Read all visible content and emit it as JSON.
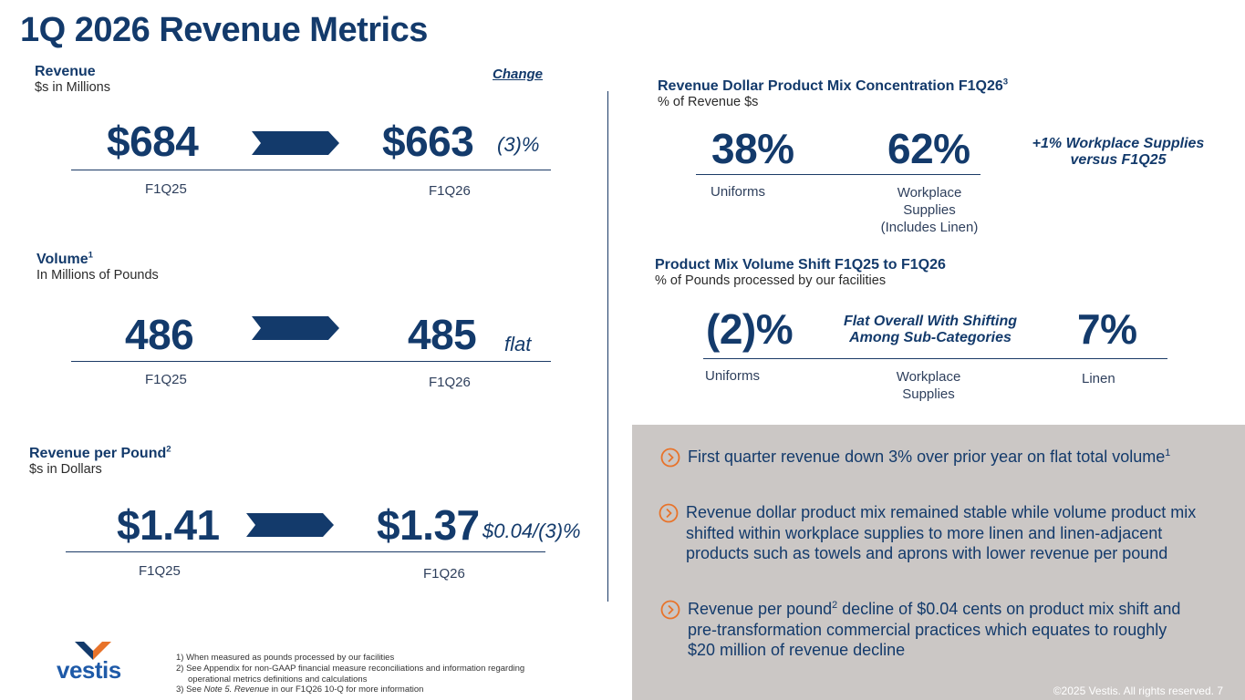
{
  "title": "1Q 2026 Revenue Metrics",
  "revenue": {
    "heading": "Revenue",
    "sub": "$s in Millions",
    "change_heading": "Change",
    "prior_value": "$684",
    "current_value": "$663",
    "change": "(3)%",
    "prior_label": "F1Q25",
    "current_label": "F1Q26"
  },
  "volume": {
    "heading": "Volume",
    "sup": "1",
    "sub": "In Millions of Pounds",
    "prior_value": "486",
    "current_value": "485",
    "change": "flat",
    "prior_label": "F1Q25",
    "current_label": "F1Q26"
  },
  "rpp": {
    "heading": "Revenue per Pound",
    "sup": "2",
    "sub": "$s in Dollars",
    "prior_value": "$1.41",
    "current_value": "$1.37",
    "change": "$0.04/(3)%",
    "prior_label": "F1Q25",
    "current_label": "F1Q26"
  },
  "mix": {
    "heading": "Revenue Dollar Product Mix Concentration F1Q26",
    "sup": "3",
    "sub": "% of Revenue $s",
    "uniforms_value": "38%",
    "workplace_value": "62%",
    "note_line1": "+1% Workplace Supplies",
    "note_line2": "versus F1Q25",
    "uniforms_label": "Uniforms",
    "workplace_label_1": "Workplace",
    "workplace_label_2": "Supplies",
    "workplace_label_3": "(Includes Linen)"
  },
  "shift": {
    "heading": "Product Mix Volume Shift F1Q25 to F1Q26",
    "sub": "% of Pounds processed by our facilities",
    "uniforms_value": "(2)%",
    "middle_line1": "Flat Overall With Shifting",
    "middle_line2": "Among Sub-Categories",
    "linen_value": "7%",
    "uniforms_label": "Uniforms",
    "workplace_label_1": "Workplace",
    "workplace_label_2": "Supplies",
    "linen_label": "Linen"
  },
  "bullets": [
    {
      "text": "First quarter revenue down 3% over prior year on flat total volume",
      "sup": "1",
      "tail": ""
    },
    {
      "text": "Revenue dollar product mix remained stable while volume product mix shifted within workplace supplies to more linen and linen-adjacent products such as towels and aprons with lower revenue per pound",
      "sup": "",
      "tail": ""
    },
    {
      "text": "Revenue per pound",
      "sup": "2",
      "tail": " decline of $0.04 cents on product mix shift and pre-transformation commercial practices which equates to roughly $20 million of revenue decline"
    }
  ],
  "footnotes": {
    "f1": "1)  When measured as pounds processed by our facilities",
    "f2a": "2)  See Appendix for non-GAAP financial measure reconciliations and information regarding",
    "f2b": "operational metrics definitions and calculations",
    "f3a": "3)  See ",
    "f3b": "Note 5. Revenue",
    "f3c": " in our F1Q26 10-Q for more information"
  },
  "logo_text": "vestis",
  "copyright": "©2025 Vestis. All rights reserved.  7",
  "colors": {
    "navy": "#133a6b",
    "panel": "#cbc7c5",
    "logo_orange": "#e8732a"
  },
  "icons": [
    "chevron-right-circle-icon",
    "arrow-right-icon"
  ]
}
